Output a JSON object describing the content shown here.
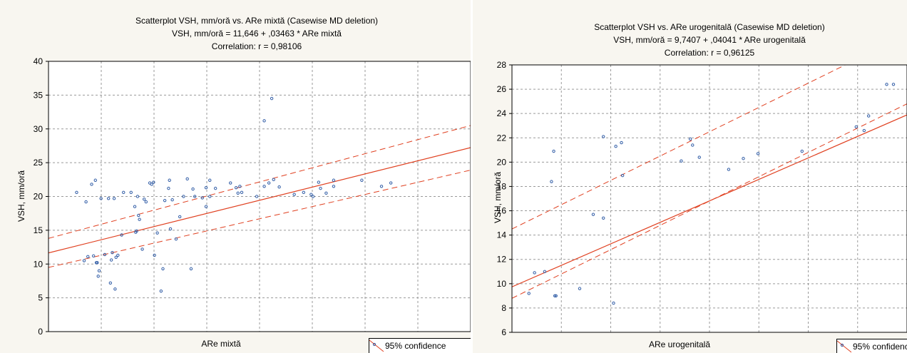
{
  "colors": {
    "points": "#3560a8",
    "fit": "#e04020",
    "grid": "#9a9a9a",
    "background": "#f8f6f0"
  },
  "chart_data": [
    {
      "type": "scatter",
      "title": "Scatterplot VSH, mm/oră vs. ARe mixtă (Casewise MD deletion)",
      "subtitle": "VSH, mm/oră = 11,646 + ,03463 * ARe mixtă",
      "correlation": "Correlation: r = 0,98106",
      "xlabel": "ARe mixtă",
      "ylabel": "VSH, mm/oră",
      "legend": "95% confidence",
      "legend_position": "bottom-right",
      "grid": true,
      "xlim": [
        0,
        450
      ],
      "ylim": [
        0,
        40
      ],
      "yticks": [
        0,
        5,
        10,
        15,
        20,
        25,
        30,
        35,
        40
      ],
      "fit": {
        "intercept": 11.646,
        "slope": 0.03463
      },
      "confidence_band": {
        "x": [
          0,
          450
        ],
        "upper": [
          13.8,
          30.5
        ],
        "lower": [
          9.5,
          23.9
        ]
      },
      "x": [
        30,
        38,
        40,
        42,
        46,
        48,
        50,
        51,
        52,
        53,
        54,
        56,
        60,
        64,
        66,
        67,
        68,
        70,
        71,
        72,
        74,
        78,
        80,
        88,
        92,
        93,
        94,
        95,
        96,
        97,
        100,
        102,
        104,
        108,
        110,
        112,
        113,
        116,
        120,
        122,
        124,
        128,
        129,
        130,
        132,
        136,
        140,
        144,
        148,
        152,
        154,
        156,
        164,
        168,
        168,
        172,
        172,
        178,
        194,
        200,
        202,
        204,
        206,
        222,
        230,
        230,
        235,
        238,
        240,
        246,
        262,
        272,
        280,
        282,
        288,
        290,
        296,
        304,
        304,
        334,
        355,
        365
      ],
      "y": [
        20.6,
        10.5,
        19.2,
        11.1,
        21.8,
        11.2,
        22.4,
        10.2,
        10.2,
        8.2,
        9.0,
        19.7,
        11.4,
        19.7,
        7.2,
        10.6,
        11.7,
        19.7,
        6.3,
        11.0,
        11.3,
        14.3,
        20.6,
        20.6,
        18.5,
        14.7,
        14.9,
        20.0,
        17.2,
        16.6,
        12.2,
        19.6,
        19.2,
        22.0,
        21.8,
        22.1,
        11.3,
        14.6,
        6.0,
        9.3,
        19.4,
        21.2,
        22.4,
        15.2,
        19.5,
        13.7,
        17.0,
        20.0,
        22.6,
        9.3,
        21.1,
        20.0,
        19.8,
        21.3,
        18.5,
        20.0,
        22.4,
        21.2,
        22.0,
        21.3,
        20.5,
        21.5,
        20.6,
        20.0,
        21.5,
        31.2,
        22.0,
        34.5,
        22.5,
        21.4,
        20.3,
        20.6,
        20.3,
        20.0,
        22.1,
        21.2,
        20.5,
        21.5,
        22.4,
        22.4,
        21.5,
        22.0
      ]
    },
    {
      "type": "scatter",
      "title": "Scatterplot VSH vs. ARe urogenitală (Casewise MD deletion)",
      "subtitle": "VSH, mm/oră = 9,7407 + ,04041 * ARe urogenitală",
      "correlation": "Correlation: r = 0,96125",
      "xlabel": "ARe urogenitală",
      "ylabel": "VSH, mm/oră",
      "legend": "95% confidence",
      "legend_position": "bottom-right",
      "grid": true,
      "xlim": [
        0,
        350
      ],
      "ylim": [
        6,
        28
      ],
      "yticks": [
        6,
        8,
        10,
        12,
        14,
        16,
        18,
        20,
        22,
        24,
        26,
        28
      ],
      "fit": {
        "intercept": 9.7407,
        "slope": 0.04041
      },
      "confidence_band": {
        "x": [
          0,
          350
        ],
        "upper": [
          14.5,
          30.5
        ],
        "lower": [
          8.8,
          24.8
        ]
      },
      "x": [
        15,
        20,
        29,
        35,
        37,
        38,
        39,
        60,
        72,
        81,
        81,
        90,
        92,
        97,
        98,
        150,
        158,
        160,
        166,
        192,
        205,
        218,
        257,
        305,
        312,
        316,
        332,
        338
      ],
      "y": [
        9.2,
        10.9,
        11.0,
        18.4,
        20.9,
        9.0,
        9.0,
        9.6,
        15.7,
        22.1,
        15.4,
        8.4,
        21.3,
        21.6,
        18.9,
        20.1,
        21.9,
        21.4,
        20.4,
        19.4,
        20.3,
        20.7,
        20.9,
        22.9,
        22.6,
        23.8,
        26.4,
        26.4
      ]
    }
  ]
}
